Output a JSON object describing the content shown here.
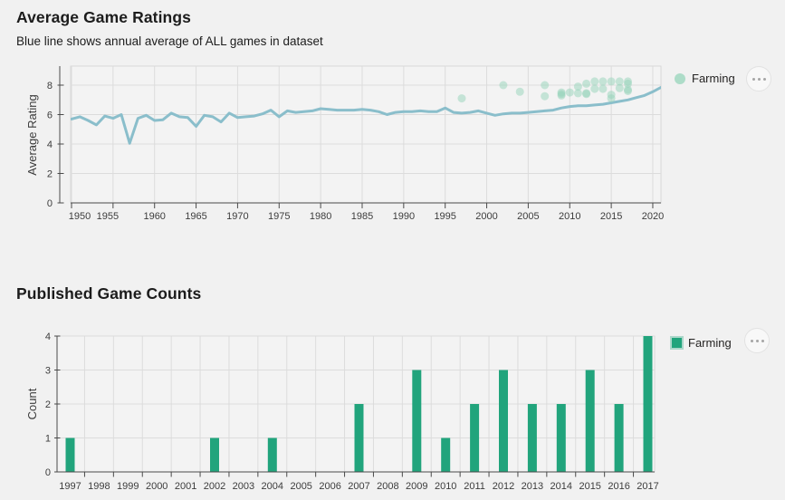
{
  "charts": {
    "ratings": {
      "title": "Average Game Ratings",
      "subtitle": "Blue line shows annual average of ALL games in dataset",
      "legend_label": "Farming",
      "more_options_icon": "ellipsis"
    },
    "counts": {
      "title": "Published Game Counts",
      "legend_label": "Farming",
      "more_options_icon": "ellipsis"
    }
  },
  "colors": {
    "page_bg": "#f1f1f1",
    "plot_bg": "#f3f3f3",
    "plot_border": "#d8d8d8",
    "grid": "#dcdcdc",
    "axis": "#4a4a4a",
    "tick_text": "#3c3c3c",
    "line": "#8abecb",
    "scatter": "#96d4ba",
    "bar": "#21a47c"
  },
  "chart_data": [
    {
      "type": "line",
      "title": "Average Game Ratings",
      "subtitle": "Blue line shows annual average of ALL games in dataset",
      "xlabel": "",
      "ylabel": "Average Rating",
      "xlim": [
        1949.9,
        2021.2
      ],
      "ylim": [
        0,
        9.3
      ],
      "x_ticks": [
        1950,
        1955,
        1960,
        1965,
        1970,
        1975,
        1980,
        1985,
        1990,
        1995,
        2000,
        2005,
        2010,
        2015,
        2020
      ],
      "y_ticks": [
        0,
        2,
        4,
        6,
        8
      ],
      "grid": true,
      "legend_position": "top-right",
      "series": [
        {
          "name": "Annual average of ALL games",
          "type": "line",
          "color": "#8abecb",
          "x": [
            1950,
            1951,
            1952,
            1953,
            1954,
            1955,
            1956,
            1957,
            1958,
            1959,
            1960,
            1961,
            1962,
            1963,
            1964,
            1965,
            1966,
            1967,
            1968,
            1969,
            1970,
            1971,
            1972,
            1973,
            1974,
            1975,
            1976,
            1977,
            1978,
            1979,
            1980,
            1981,
            1982,
            1983,
            1984,
            1985,
            1986,
            1987,
            1988,
            1989,
            1990,
            1991,
            1992,
            1993,
            1994,
            1995,
            1996,
            1997,
            1998,
            1999,
            2000,
            2001,
            2002,
            2003,
            2004,
            2005,
            2006,
            2007,
            2008,
            2009,
            2010,
            2011,
            2012,
            2013,
            2014,
            2015,
            2016,
            2017,
            2018,
            2019,
            2020,
            2021
          ],
          "y": [
            5.7,
            5.85,
            5.6,
            5.3,
            5.9,
            5.75,
            6.0,
            4.05,
            5.75,
            5.95,
            5.6,
            5.65,
            6.1,
            5.85,
            5.8,
            5.2,
            5.95,
            5.85,
            5.5,
            6.1,
            5.8,
            5.85,
            5.9,
            6.05,
            6.3,
            5.85,
            6.25,
            6.15,
            6.2,
            6.25,
            6.4,
            6.35,
            6.3,
            6.3,
            6.3,
            6.35,
            6.3,
            6.2,
            6.0,
            6.15,
            6.2,
            6.2,
            6.25,
            6.2,
            6.2,
            6.45,
            6.15,
            6.1,
            6.15,
            6.25,
            6.1,
            5.95,
            6.05,
            6.1,
            6.1,
            6.15,
            6.2,
            6.25,
            6.3,
            6.45,
            6.55,
            6.6,
            6.6,
            6.65,
            6.7,
            6.8,
            6.9,
            7.0,
            7.15,
            7.3,
            7.55,
            7.85
          ]
        },
        {
          "name": "Farming",
          "type": "scatter",
          "color": "#96d4ba",
          "opacity": 0.5,
          "points": [
            [
              1997,
              7.1
            ],
            [
              2002,
              8.0
            ],
            [
              2004,
              7.55
            ],
            [
              2007,
              8.0
            ],
            [
              2007,
              7.25
            ],
            [
              2009,
              7.5
            ],
            [
              2009,
              7.4
            ],
            [
              2009,
              7.3
            ],
            [
              2010,
              7.5
            ],
            [
              2011,
              7.9
            ],
            [
              2011,
              7.45
            ],
            [
              2012,
              8.1
            ],
            [
              2012,
              7.45
            ],
            [
              2012,
              7.4
            ],
            [
              2013,
              8.25
            ],
            [
              2013,
              7.75
            ],
            [
              2014,
              8.25
            ],
            [
              2014,
              7.75
            ],
            [
              2015,
              8.25
            ],
            [
              2015,
              7.35
            ],
            [
              2015,
              7.1
            ],
            [
              2016,
              8.25
            ],
            [
              2016,
              7.8
            ],
            [
              2017,
              8.25
            ],
            [
              2017,
              8.1
            ],
            [
              2017,
              7.7
            ],
            [
              2017,
              7.6
            ]
          ]
        }
      ]
    },
    {
      "type": "bar",
      "title": "Published Game Counts",
      "xlabel": "",
      "ylabel": "Count",
      "series_name": "Farming",
      "color": "#21a47c",
      "categories": [
        1997,
        1998,
        1999,
        2000,
        2001,
        2002,
        2003,
        2004,
        2005,
        2006,
        2007,
        2008,
        2009,
        2010,
        2011,
        2012,
        2013,
        2014,
        2015,
        2016,
        2017
      ],
      "values": [
        1,
        0,
        0,
        0,
        0,
        1,
        0,
        1,
        0,
        0,
        2,
        0,
        3,
        1,
        2,
        3,
        2,
        2,
        3,
        2,
        4
      ],
      "ylim": [
        0,
        4
      ],
      "y_ticks": [
        0,
        1,
        2,
        3,
        4
      ],
      "grid": true,
      "legend_position": "top-right"
    }
  ]
}
